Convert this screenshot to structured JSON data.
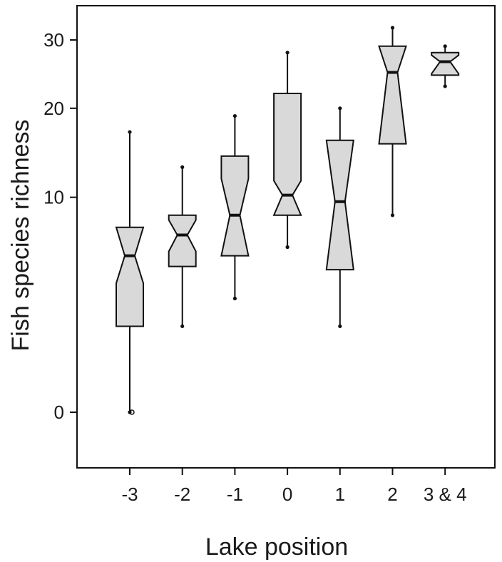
{
  "chart_data": {
    "type": "boxplot",
    "notched": true,
    "xlabel": "Lake position",
    "ylabel": "Fish species richness",
    "y_scale": "sqrt",
    "y_ticks": [
      0,
      10,
      20,
      30
    ],
    "grid": false,
    "box_color": "#d9d9d9",
    "line_color": "#111111",
    "categories": [
      "-3",
      "-2",
      "-1",
      "0",
      "1",
      "2",
      "3 & 4"
    ],
    "boxes": [
      {
        "category": "-3",
        "whisker_low": 0,
        "q1": 1.6,
        "notch_low": 3.6,
        "median": 5.3,
        "notch_high": 7.4,
        "q3": 7.4,
        "whisker_high": 17
      },
      {
        "category": "-2",
        "whisker_low": 1.6,
        "q1": 4.6,
        "notch_low": 5.6,
        "median": 6.8,
        "notch_high": 8.0,
        "q3": 8.4,
        "whisker_high": 13
      },
      {
        "category": "-1",
        "whisker_low": 2.8,
        "q1": 5.3,
        "notch_low": 5.3,
        "median": 8.4,
        "notch_high": 11.8,
        "q3": 14.2,
        "whisker_high": 19
      },
      {
        "category": "0",
        "whisker_low": 5.9,
        "q1": 8.4,
        "notch_low": 8.4,
        "median": 10.2,
        "notch_high": 11.6,
        "q3": 22,
        "whisker_high": 28
      },
      {
        "category": "1",
        "whisker_low": 1.6,
        "q1": 4.4,
        "notch_low": 4.4,
        "median": 9.6,
        "notch_high": 16,
        "q3": 16,
        "whisker_high": 20
      },
      {
        "category": "2",
        "whisker_low": 8.4,
        "q1": 15.6,
        "notch_low": 15.6,
        "median": 25,
        "notch_high": 29,
        "q3": 29,
        "whisker_high": 32
      },
      {
        "category": "3 & 4",
        "whisker_low": 23,
        "q1": 24.6,
        "notch_low": 24.8,
        "median": 26.6,
        "notch_high": 27.6,
        "q3": 28,
        "whisker_high": 29
      }
    ],
    "outliers": [
      {
        "category": "-3",
        "value": 0
      }
    ]
  }
}
